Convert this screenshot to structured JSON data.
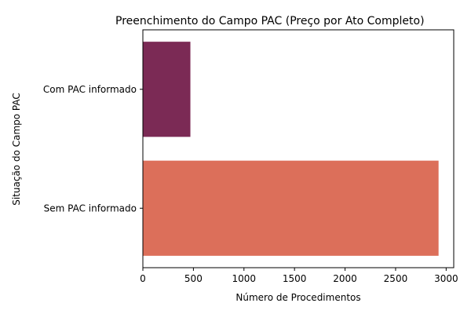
{
  "chart_data": {
    "type": "bar",
    "orientation": "horizontal",
    "title": "Preenchimento do Campo PAC (Preço por Ato Completo)",
    "xlabel": "Número de Procedimentos",
    "ylabel": "Situação do Campo PAC",
    "categories": [
      "Com PAC informado",
      "Sem PAC informado"
    ],
    "values": [
      470,
      2925
    ],
    "colors": [
      "#7b2a55",
      "#dc6f5a"
    ],
    "xlim": [
      0,
      3075
    ],
    "xticks": [
      0,
      500,
      1000,
      1500,
      2000,
      2500,
      3000
    ],
    "grid": false,
    "legend": "none"
  }
}
